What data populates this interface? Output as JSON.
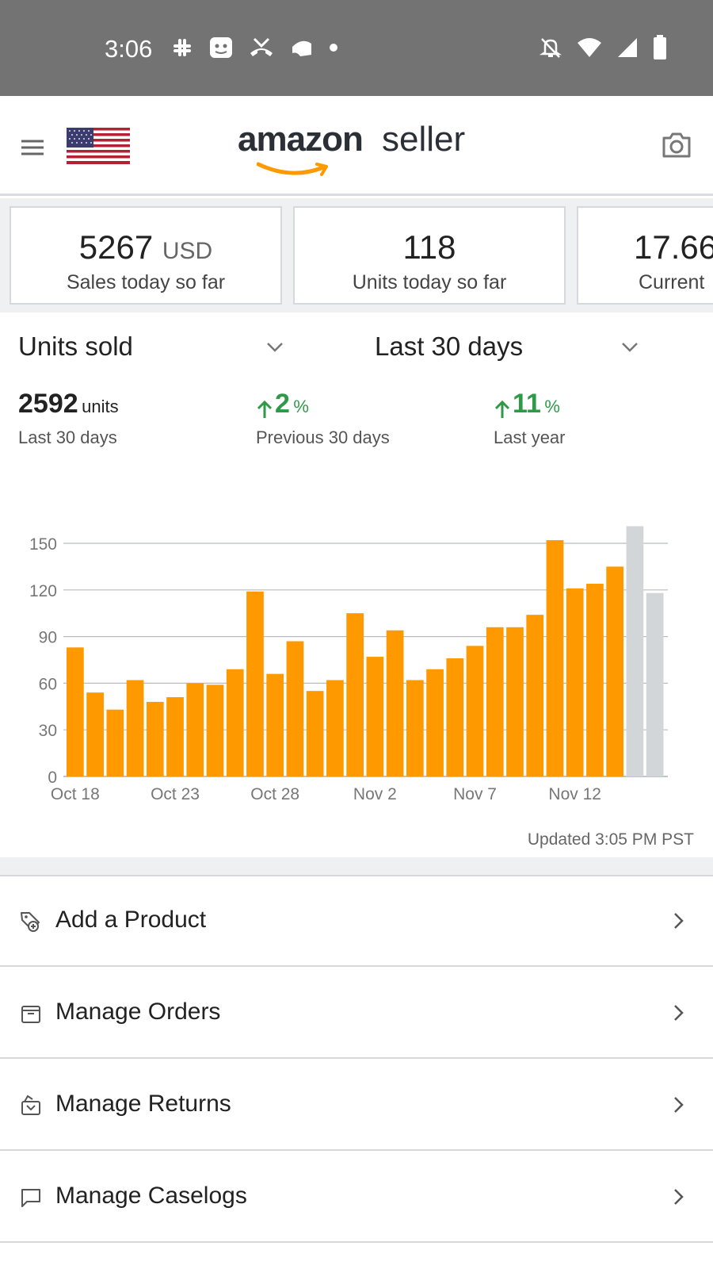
{
  "status_bar": {
    "time": "3:06",
    "left_icons": [
      "slack-icon",
      "app-icon",
      "missed-call-icon",
      "cloud-icon",
      "dot-icon"
    ],
    "right_icons": [
      "notifications-off-icon",
      "wifi-icon",
      "signal-icon",
      "battery-icon"
    ]
  },
  "header": {
    "brand_amazon": "amazon",
    "brand_seller": "seller",
    "flag": "us-flag-icon",
    "menu_icon": "menu-icon",
    "camera_icon": "camera-icon"
  },
  "kpis": [
    {
      "value": "5267",
      "unit": "USD",
      "label": "Sales today so far"
    },
    {
      "value": "118",
      "unit": "",
      "label": "Units today so far"
    },
    {
      "value": "17.66",
      "unit": "",
      "label": "Current"
    }
  ],
  "selectors": {
    "metric": "Units sold",
    "range": "Last 30 days"
  },
  "stats": {
    "total_value": "2592",
    "total_unit": "units",
    "total_label": "Last 30 days",
    "prev_value": "2",
    "prev_unit": "%",
    "prev_label": "Previous 30 days",
    "year_value": "11",
    "year_unit": "%",
    "year_label": "Last year"
  },
  "chart_data": {
    "type": "bar",
    "categories": [
      "Oct 18",
      "Oct 19",
      "Oct 20",
      "Oct 21",
      "Oct 22",
      "Oct 23",
      "Oct 24",
      "Oct 25",
      "Oct 26",
      "Oct 27",
      "Oct 28",
      "Oct 29",
      "Oct 30",
      "Oct 31",
      "Nov 1",
      "Nov 2",
      "Nov 3",
      "Nov 4",
      "Nov 5",
      "Nov 6",
      "Nov 7",
      "Nov 8",
      "Nov 9",
      "Nov 10",
      "Nov 11",
      "Nov 12",
      "Nov 13",
      "Nov 14",
      "Nov 15",
      "Nov 16"
    ],
    "values": [
      83,
      54,
      43,
      62,
      48,
      51,
      60,
      59,
      69,
      119,
      66,
      87,
      55,
      62,
      105,
      77,
      94,
      62,
      69,
      76,
      84,
      96,
      96,
      104,
      152,
      121,
      124,
      135,
      161,
      118
    ],
    "bar_colors": [
      "#ff9900",
      "#ff9900",
      "#ff9900",
      "#ff9900",
      "#ff9900",
      "#ff9900",
      "#ff9900",
      "#ff9900",
      "#ff9900",
      "#ff9900",
      "#ff9900",
      "#ff9900",
      "#ff9900",
      "#ff9900",
      "#ff9900",
      "#ff9900",
      "#ff9900",
      "#ff9900",
      "#ff9900",
      "#ff9900",
      "#ff9900",
      "#ff9900",
      "#ff9900",
      "#ff9900",
      "#ff9900",
      "#ff9900",
      "#ff9900",
      "#ff9900",
      "#d3d6d9",
      "#d3d6d9"
    ],
    "x_tick_labels": [
      "Oct 18",
      "Oct 23",
      "Oct 28",
      "Nov 2",
      "Nov 7",
      "Nov 12"
    ],
    "x_tick_indices": [
      0,
      5,
      10,
      15,
      20,
      25
    ],
    "y_ticks": [
      0,
      30,
      60,
      90,
      120,
      150
    ],
    "ylim": [
      0,
      150
    ],
    "grid": true,
    "title": "",
    "xlabel": "",
    "ylabel": ""
  },
  "updated": "Updated 3:05 PM PST",
  "menu": [
    {
      "label": "Add a Product",
      "icon": "add-product-tag-icon"
    },
    {
      "label": "Manage Orders",
      "icon": "orders-box-icon"
    },
    {
      "label": "Manage Returns",
      "icon": "returns-box-icon"
    },
    {
      "label": "Manage Caselogs",
      "icon": "caselog-chat-icon"
    }
  ],
  "colors": {
    "accent_orange": "#ff9900",
    "positive_green": "#2e9a48",
    "status_bar": "#737373",
    "bar_inactive": "#d3d6d9"
  }
}
